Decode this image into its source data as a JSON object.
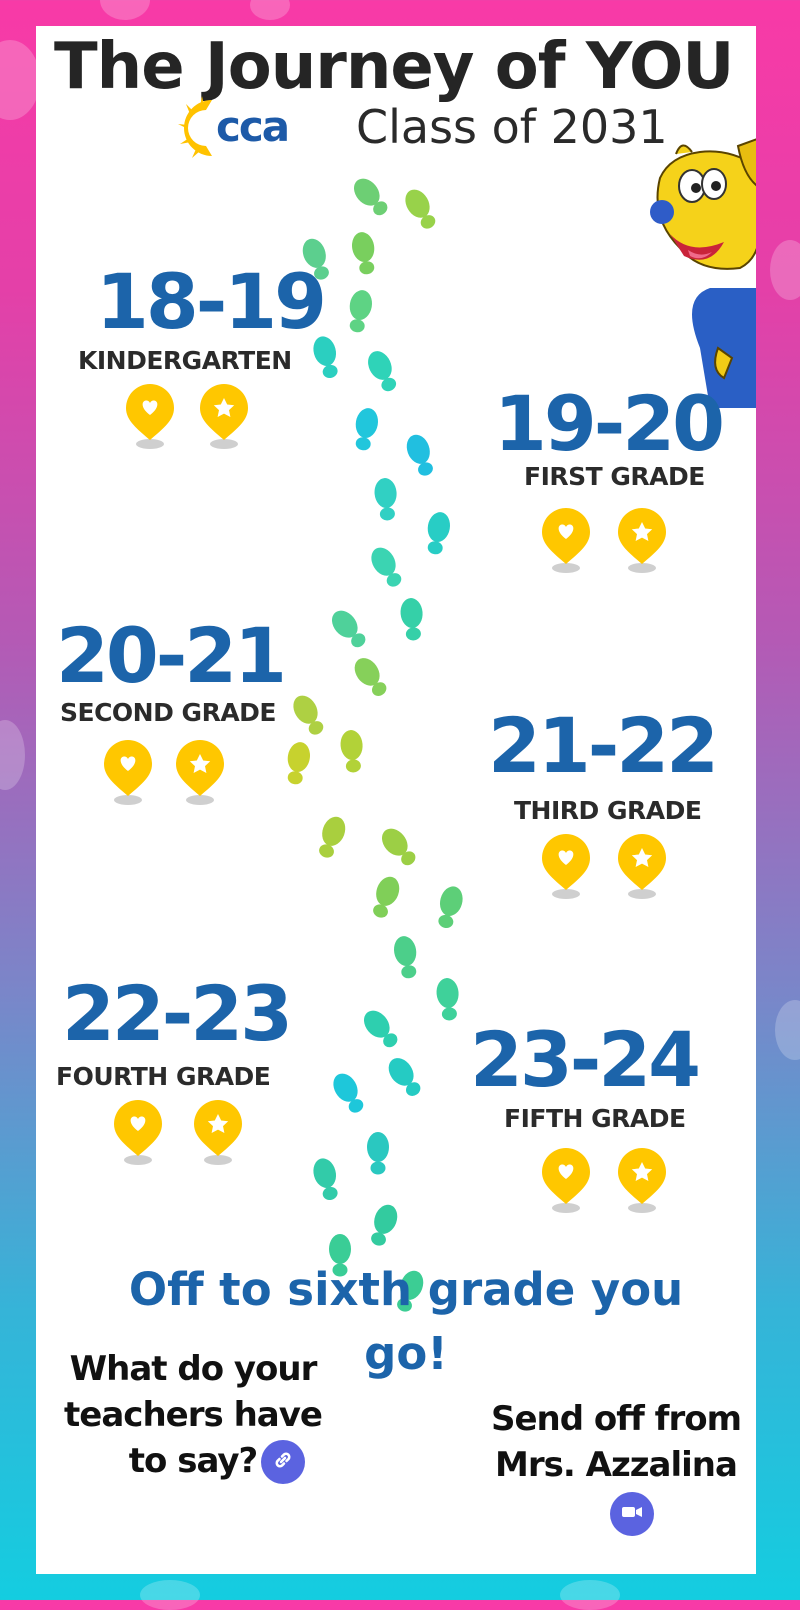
{
  "header": {
    "title": "The Journey of YOU",
    "logo_text": "cca",
    "class_label": "Class of 2031"
  },
  "colors": {
    "years": "#1c64aa",
    "pin": "#ffc700",
    "button": "#5b63e0"
  },
  "milestones": [
    {
      "years": "18-19",
      "grade": "KINDERGARTEN"
    },
    {
      "years": "19-20",
      "grade": "FIRST GRADE"
    },
    {
      "years": "20-21",
      "grade": "SECOND GRADE"
    },
    {
      "years": "21-22",
      "grade": "THIRD GRADE"
    },
    {
      "years": "22-23",
      "grade": "FOURTH GRADE"
    },
    {
      "years": "23-24",
      "grade": "FIFTH GRADE"
    }
  ],
  "closing": "Off to sixth grade you go!",
  "teachers": {
    "text": "What do your teachers have to say?",
    "icon": "link-icon"
  },
  "sendoff": {
    "text": "Send off from Mrs. Azzalina",
    "icon": "video-icon"
  }
}
